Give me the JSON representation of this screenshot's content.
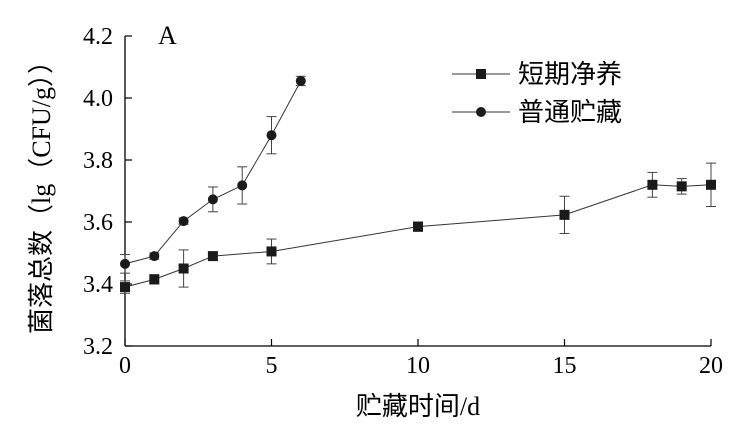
{
  "chart_data": {
    "type": "line",
    "panel_label": "A",
    "xlabel": "贮藏时间/d",
    "ylabel": "菌落总数（lg（CFU/g））",
    "xlim": [
      0,
      20
    ],
    "ylim": [
      3.2,
      4.2
    ],
    "xticks": [
      0,
      5,
      10,
      15,
      20
    ],
    "yticks": [
      3.2,
      3.4,
      3.6,
      3.8,
      4.0,
      4.2
    ],
    "x_tick_labels": [
      "0",
      "5",
      "10",
      "15",
      "20"
    ],
    "y_tick_labels": [
      "3.2",
      "3.4",
      "3.6",
      "3.8",
      "4.0",
      "4.2"
    ],
    "legend_position": "top-right",
    "series": [
      {
        "name": "短期净养",
        "marker": "square",
        "color": "#1a1a1a",
        "x": [
          0,
          1,
          2,
          3,
          5,
          10,
          15,
          18,
          19,
          20
        ],
        "y": [
          3.39,
          3.415,
          3.45,
          3.49,
          3.505,
          3.585,
          3.623,
          3.72,
          3.715,
          3.72
        ],
        "err": [
          0.02,
          0.015,
          0.06,
          0.01,
          0.04,
          0.015,
          0.06,
          0.04,
          0.025,
          0.07
        ]
      },
      {
        "name": "普通贮藏",
        "marker": "circle",
        "color": "#1a1a1a",
        "x": [
          0,
          1,
          2,
          3,
          4,
          5,
          6
        ],
        "y": [
          3.465,
          3.49,
          3.603,
          3.673,
          3.718,
          3.88,
          4.055
        ],
        "err": [
          0.03,
          0.01,
          0.01,
          0.04,
          0.06,
          0.06,
          0.015
        ]
      }
    ]
  }
}
